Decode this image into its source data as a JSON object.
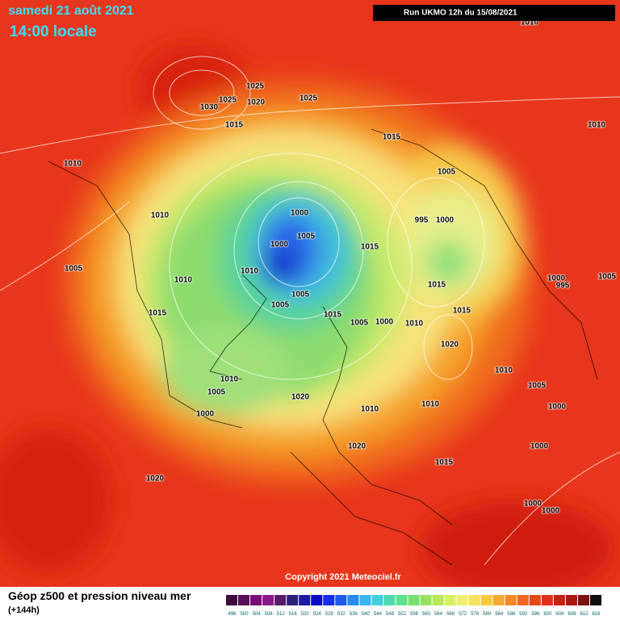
{
  "header": {
    "date": "samedi 21 août 2021",
    "time": "14:00 locale",
    "run": "Run UKMO 12h du 15/08/2021"
  },
  "isobar_labels": [
    "1025",
    "1025",
    "1020",
    "1030",
    "1025",
    "1015",
    "1010",
    "1010",
    "1015",
    "1010",
    "1005",
    "1010",
    "1000",
    "995",
    "1000",
    "1005",
    "1000",
    "1015",
    "1010",
    "1005",
    "1010",
    "1000",
    "995",
    "1005",
    "1015",
    "1005",
    "1005",
    "1015",
    "1015",
    "1005",
    "1000",
    "1010",
    "1015",
    "1020",
    "1010",
    "1010",
    "1005",
    "1020",
    "1005",
    "1010",
    "1010",
    "1000",
    "1000",
    "1020",
    "1000",
    "1015",
    "1020",
    "1000",
    "1000"
  ],
  "copyright": "Copyright 2021 Meteociel.fr",
  "footer": {
    "title": "Géop z500 et pression niveau mer",
    "subtitle": "(+144h)"
  },
  "scale": {
    "labels": [
      "496",
      "500",
      "504",
      "508",
      "512",
      "516",
      "520",
      "524",
      "528",
      "532",
      "536",
      "540",
      "544",
      "548",
      "552",
      "556",
      "560",
      "564",
      "568",
      "572",
      "576",
      "580",
      "584",
      "588",
      "592",
      "596",
      "600",
      "604",
      "608",
      "612",
      "616"
    ]
  }
}
